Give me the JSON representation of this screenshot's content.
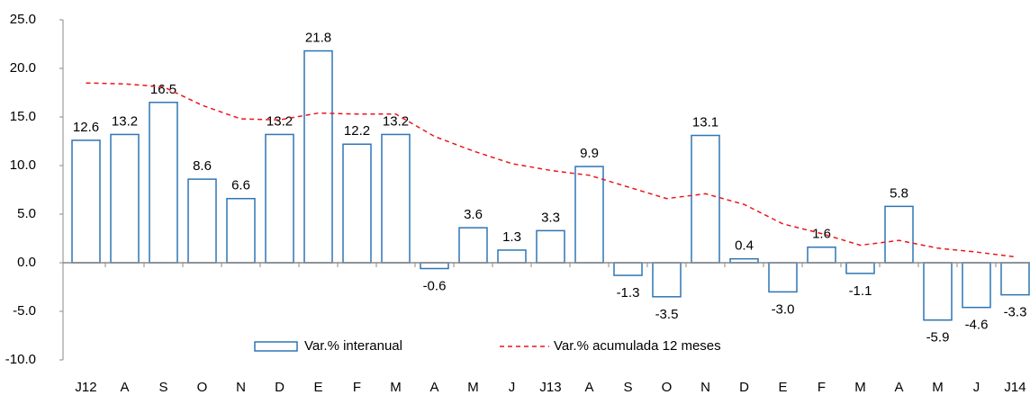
{
  "chart_data": {
    "type": "bar",
    "categories": [
      "J12",
      "A",
      "S",
      "O",
      "N",
      "D",
      "E",
      "F",
      "M",
      "A",
      "M",
      "J",
      "J13",
      "A",
      "S",
      "O",
      "N",
      "D",
      "E",
      "F",
      "M",
      "A",
      "M",
      "J",
      "J14"
    ],
    "series": [
      {
        "name": "Var.% interanual",
        "type": "bar",
        "color": "#2e75b6",
        "values": [
          12.6,
          13.2,
          16.5,
          8.6,
          6.6,
          13.2,
          21.8,
          12.2,
          13.2,
          -0.6,
          3.6,
          1.3,
          3.3,
          9.9,
          -1.3,
          -3.5,
          13.1,
          0.4,
          -3.0,
          1.6,
          -1.1,
          5.8,
          -5.9,
          -4.6,
          -3.3
        ],
        "value_labels": [
          "12.6",
          "13.2",
          "16.5",
          "8.6",
          "6.6",
          "13.2",
          "21.8",
          "12.2",
          "13.2",
          "-0.6",
          "3.6",
          "1.3",
          "3.3",
          "9.9",
          "-1.3",
          "-3.5",
          "13.1",
          "0.4",
          "-3.0",
          "1.6",
          "-1.1",
          "5.8",
          "-5.9",
          "-4.6",
          "-3.3"
        ]
      },
      {
        "name": "Var.% acumulada 12 meses",
        "type": "line",
        "color": "#e8161b",
        "values": [
          18.5,
          18.4,
          18.1,
          16.2,
          14.8,
          14.7,
          15.4,
          15.3,
          15.3,
          13.0,
          11.5,
          10.2,
          9.5,
          9.0,
          7.8,
          6.6,
          7.1,
          6.0,
          4.0,
          3.0,
          1.8,
          2.3,
          1.5,
          1.1,
          0.6
        ]
      }
    ],
    "ylim": [
      -10,
      25
    ],
    "yticks": [
      {
        "value": -10,
        "label": "-10.0"
      },
      {
        "value": -5,
        "label": "-5.0"
      },
      {
        "value": 0,
        "label": "0.0"
      },
      {
        "value": 5,
        "label": "5.0"
      },
      {
        "value": 10,
        "label": "10.0"
      },
      {
        "value": 15,
        "label": "15.0"
      },
      {
        "value": 20,
        "label": "20.0"
      },
      {
        "value": 25,
        "label": "25.0"
      }
    ],
    "grid": false,
    "legend": "bottom"
  }
}
